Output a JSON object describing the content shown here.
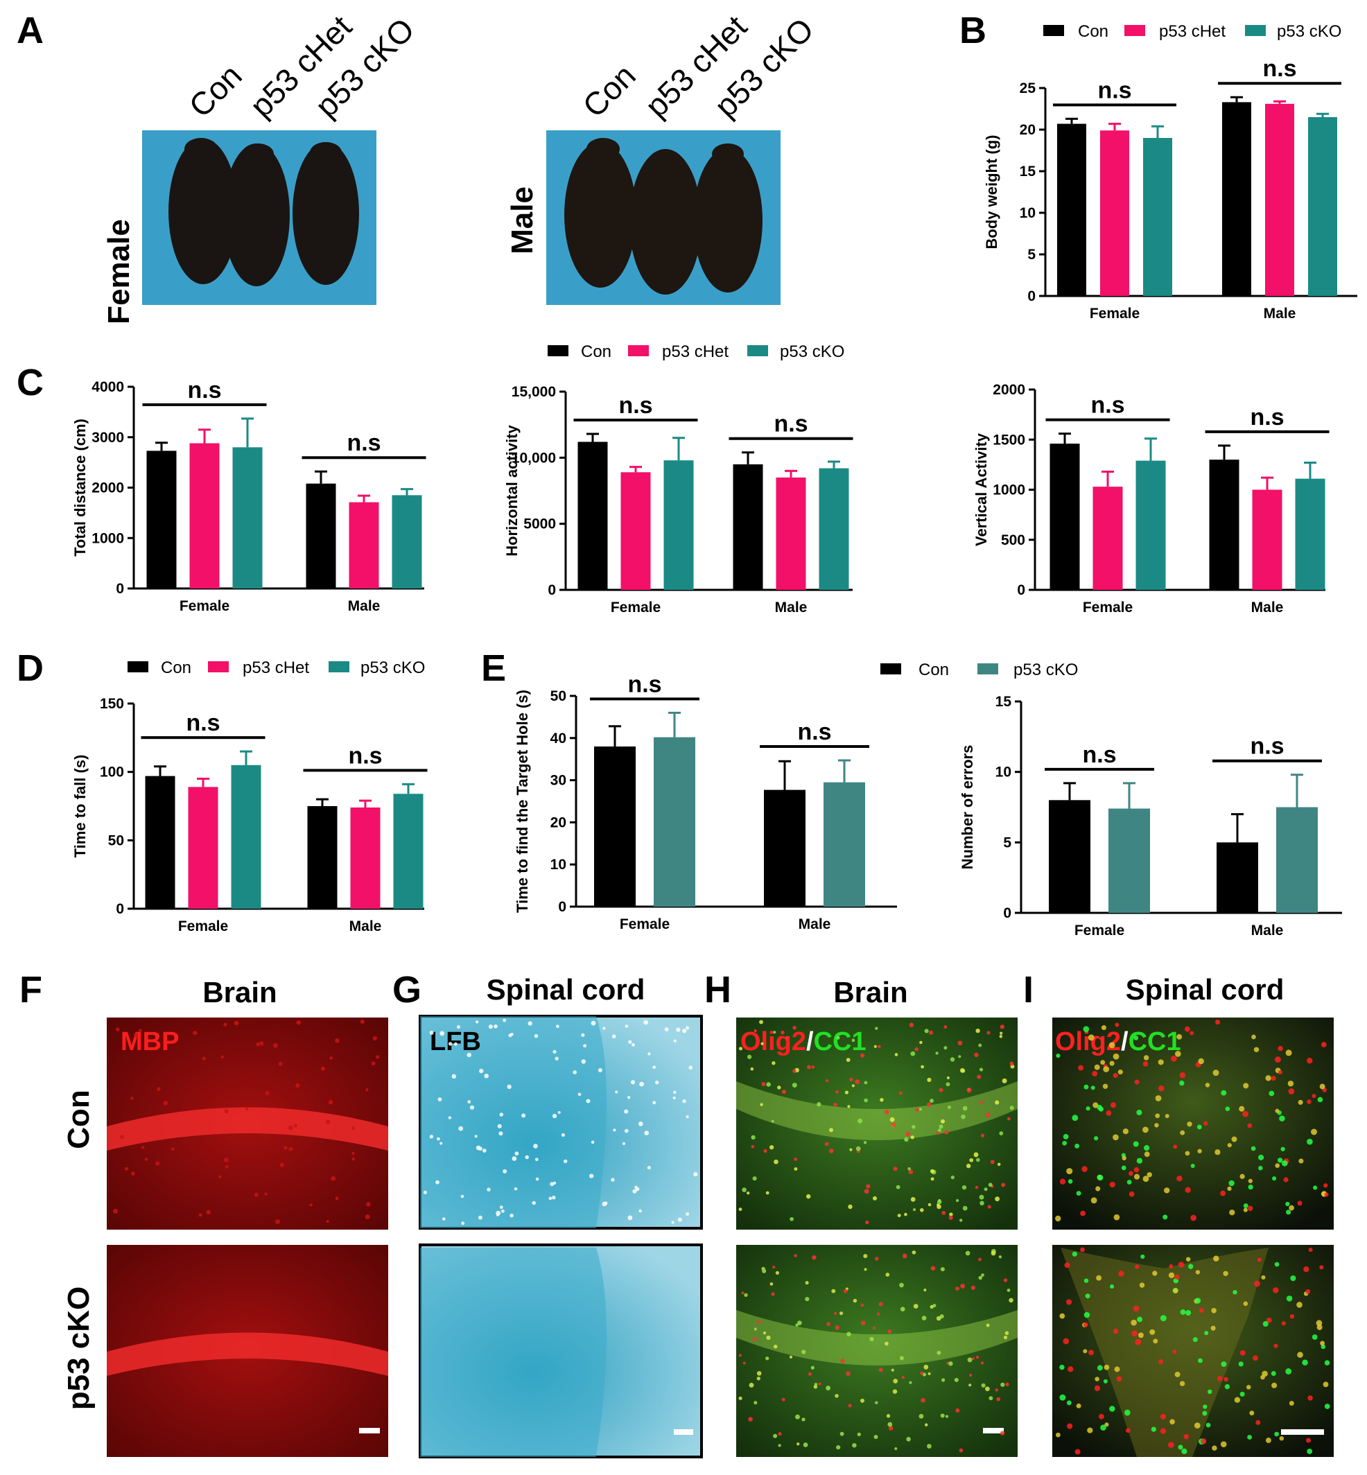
{
  "panel_labels": [
    "A",
    "B",
    "C",
    "D",
    "E",
    "F",
    "G",
    "H",
    "I"
  ],
  "colors": {
    "con": "#000000",
    "het": "#f21068",
    "cko": "#1b8a84",
    "cko_e": "#3f8683",
    "mouse_bg": "#3a9fc8"
  },
  "panelA": {
    "female": {
      "side_label": "Female",
      "column_labels": [
        "Con",
        "p53 cHet",
        "p53 cKO"
      ]
    },
    "male": {
      "side_label": "Male",
      "column_labels": [
        "Con",
        "p53 cHet",
        "p53 cKO"
      ]
    }
  },
  "legend3": {
    "items": [
      "Con",
      "p53 cHet",
      "p53 cKO"
    ]
  },
  "legend2": {
    "items": [
      "Con",
      "p53 cKO"
    ]
  },
  "chart_data": [
    {
      "id": "B",
      "type": "bar",
      "title": "",
      "xlabel": "",
      "ylabel": "Body weight (g)",
      "categories": [
        "Female",
        "Male"
      ],
      "ylim": [
        0,
        25
      ],
      "yticks": [
        "0",
        "5",
        "10",
        "15",
        "20",
        "25"
      ],
      "series": [
        {
          "name": "Con",
          "values": [
            20.7,
            23.3
          ],
          "errors": [
            0.6,
            0.6
          ]
        },
        {
          "name": "p53 cHet",
          "values": [
            19.9,
            23.1
          ],
          "errors": [
            0.8,
            0.3
          ]
        },
        {
          "name": "p53 cKO",
          "values": [
            19.0,
            21.5
          ],
          "errors": [
            1.4,
            0.4
          ]
        }
      ],
      "annotations": [
        "n.s",
        "n.s"
      ],
      "legend": "top"
    },
    {
      "id": "C1",
      "type": "bar",
      "title": "",
      "xlabel": "",
      "ylabel": "Total distance (cm)",
      "categories": [
        "Female",
        "Male"
      ],
      "ylim": [
        0,
        4000
      ],
      "yticks": [
        "0",
        "1000",
        "2000",
        "3000",
        "4000"
      ],
      "series": [
        {
          "name": "Con",
          "values": [
            2730,
            2080
          ],
          "errors": [
            160,
            240
          ]
        },
        {
          "name": "p53 cHet",
          "values": [
            2880,
            1710
          ],
          "errors": [
            270,
            130
          ]
        },
        {
          "name": "p53 cKO",
          "values": [
            2800,
            1850
          ],
          "errors": [
            570,
            120
          ]
        }
      ],
      "annotations": [
        "n.s",
        "n.s"
      ]
    },
    {
      "id": "C2",
      "type": "bar",
      "title": "",
      "xlabel": "",
      "ylabel": "Horizontal activity",
      "categories": [
        "Female",
        "Male"
      ],
      "ylim": [
        0,
        15000
      ],
      "yticks": [
        "0",
        "5000",
        "10,000",
        "15,000"
      ],
      "series": [
        {
          "name": "Con",
          "values": [
            11200,
            9500
          ],
          "errors": [
            600,
            900
          ]
        },
        {
          "name": "p53 cHet",
          "values": [
            8900,
            8500
          ],
          "errors": [
            400,
            500
          ]
        },
        {
          "name": "p53 cKO",
          "values": [
            9800,
            9200
          ],
          "errors": [
            1700,
            500
          ]
        }
      ],
      "annotations": [
        "n.s",
        "n.s"
      ],
      "legend": "top"
    },
    {
      "id": "C3",
      "type": "bar",
      "title": "",
      "xlabel": "",
      "ylabel": "Vertical Activity",
      "categories": [
        "Female",
        "Male"
      ],
      "ylim": [
        0,
        2000
      ],
      "yticks": [
        "0",
        "500",
        "1000",
        "1500",
        "2000"
      ],
      "series": [
        {
          "name": "Con",
          "values": [
            1460,
            1300
          ],
          "errors": [
            100,
            140
          ]
        },
        {
          "name": "p53 cHet",
          "values": [
            1030,
            1000
          ],
          "errors": [
            150,
            120
          ]
        },
        {
          "name": "p53 cKO",
          "values": [
            1290,
            1110
          ],
          "errors": [
            220,
            160
          ]
        }
      ],
      "annotations": [
        "n.s",
        "n.s"
      ]
    },
    {
      "id": "D",
      "type": "bar",
      "title": "",
      "xlabel": "",
      "ylabel": "Time to fall (s)",
      "categories": [
        "Female",
        "Male"
      ],
      "ylim": [
        0,
        150
      ],
      "yticks": [
        "0",
        "50",
        "100",
        "150"
      ],
      "series": [
        {
          "name": "Con",
          "values": [
            97,
            75
          ],
          "errors": [
            7,
            5
          ]
        },
        {
          "name": "p53 cHet",
          "values": [
            89,
            74
          ],
          "errors": [
            6,
            5
          ]
        },
        {
          "name": "p53 cKO",
          "values": [
            105,
            84
          ],
          "errors": [
            10,
            7
          ]
        }
      ],
      "annotations": [
        "n.s",
        "n.s"
      ],
      "legend": "top"
    },
    {
      "id": "E1",
      "type": "bar",
      "title": "",
      "xlabel": "",
      "ylabel": "Time to find the Target Hole (s)",
      "categories": [
        "Female",
        "Male"
      ],
      "ylim": [
        0,
        50
      ],
      "yticks": [
        "0",
        "10",
        "20",
        "30",
        "40",
        "50"
      ],
      "series": [
        {
          "name": "Con",
          "values": [
            38,
            27.7
          ],
          "errors": [
            4.8,
            6.8
          ]
        },
        {
          "name": "p53 cKO",
          "values": [
            40.2,
            29.5
          ],
          "errors": [
            5.8,
            5.2
          ]
        }
      ],
      "annotations": [
        "n.s",
        "n.s"
      ]
    },
    {
      "id": "E2",
      "type": "bar",
      "title": "",
      "xlabel": "",
      "ylabel": "Number of errors",
      "categories": [
        "Female",
        "Male"
      ],
      "ylim": [
        0,
        15
      ],
      "yticks": [
        "0",
        "5",
        "10",
        "15"
      ],
      "series": [
        {
          "name": "Con",
          "values": [
            8.0,
            5.0
          ],
          "errors": [
            1.2,
            2.0
          ]
        },
        {
          "name": "p53 cKO",
          "values": [
            7.4,
            7.5
          ],
          "errors": [
            1.8,
            2.3
          ]
        }
      ],
      "annotations": [
        "n.s",
        "n.s"
      ],
      "legend": "top"
    }
  ],
  "micrographs": {
    "row_labels": [
      "Con",
      "p53 cKO"
    ],
    "F": {
      "title": "Brain",
      "stain": "MBP",
      "bg": "#7a0707",
      "fg": "#e11818"
    },
    "G": {
      "title": "Spinal cord",
      "stain": "LFB",
      "bg": "#33a7c3",
      "fg": "#d9eff5"
    },
    "H": {
      "title": "Brain",
      "stain_a": "Olig2",
      "stain_sep": "/",
      "stain_b": "CC1",
      "bg": "#1d4612",
      "fg": "#6fbf2a"
    },
    "I": {
      "title": "Spinal cord",
      "stain_a": "Olig2",
      "stain_sep": "/",
      "stain_b": "CC1",
      "bg": "#0d150a",
      "fg": "#4d6f1e"
    }
  }
}
